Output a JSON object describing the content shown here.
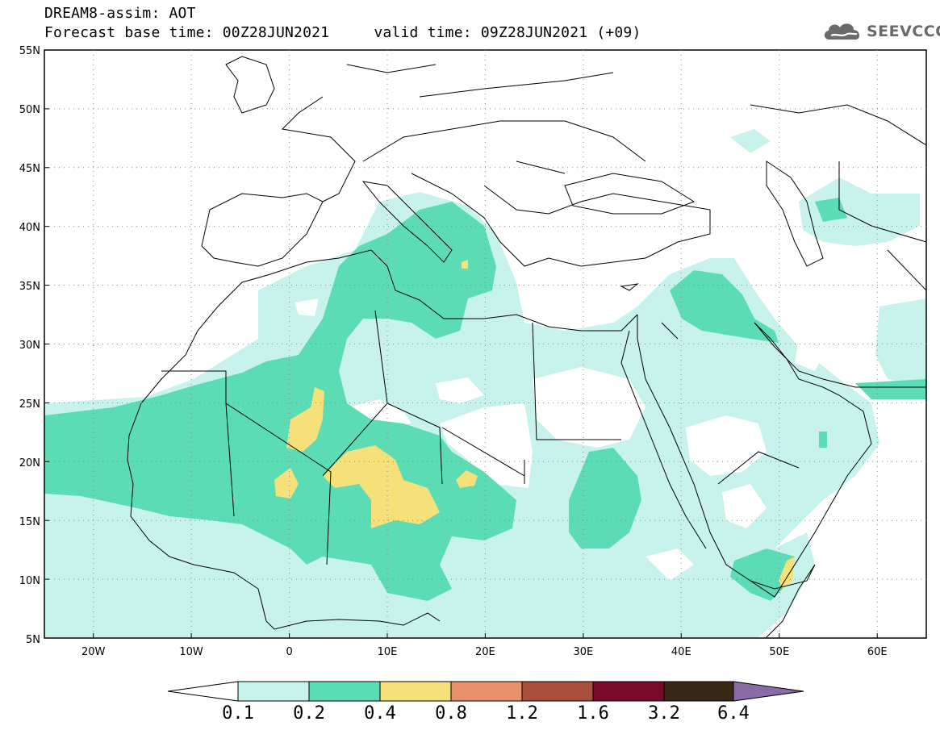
{
  "header": {
    "title": "DREAM8-assim: AOT",
    "base_time_label": "Forecast base time:",
    "base_time": "00Z28JUN2021",
    "valid_time_label": "valid time:",
    "valid_time": "09Z28JUN2021 (+09)"
  },
  "logo": {
    "text": "SEEVCCC",
    "icon": "cloud-icon",
    "color": "#6a6a6a"
  },
  "map": {
    "variable": "Aerosol Optical Thickness",
    "lon_range": [
      -25,
      65
    ],
    "lat_range": [
      5,
      55
    ],
    "lat_ticks": [
      "55N",
      "50N",
      "45N",
      "40N",
      "35N",
      "30N",
      "25N",
      "20N",
      "15N",
      "10N",
      "5N"
    ],
    "lon_ticks": [
      "20W",
      "10W",
      "0",
      "10E",
      "20E",
      "30E",
      "40E",
      "50E",
      "60E"
    ],
    "colors": {
      "level_0_1": "#c8f2ec",
      "level_0_2": "#5cdcb4",
      "level_0_4": "#f5e07a"
    }
  },
  "colorbar": {
    "labels": [
      "0.1",
      "0.2",
      "0.4",
      "0.8",
      "1.2",
      "1.6",
      "3.2",
      "6.4"
    ],
    "colors": [
      "#c8f2ec",
      "#5cdcb4",
      "#f5e07a",
      "#e8906a",
      "#a8503c",
      "#7a0a2a",
      "#3a2816",
      "#8b6aa8"
    ]
  }
}
